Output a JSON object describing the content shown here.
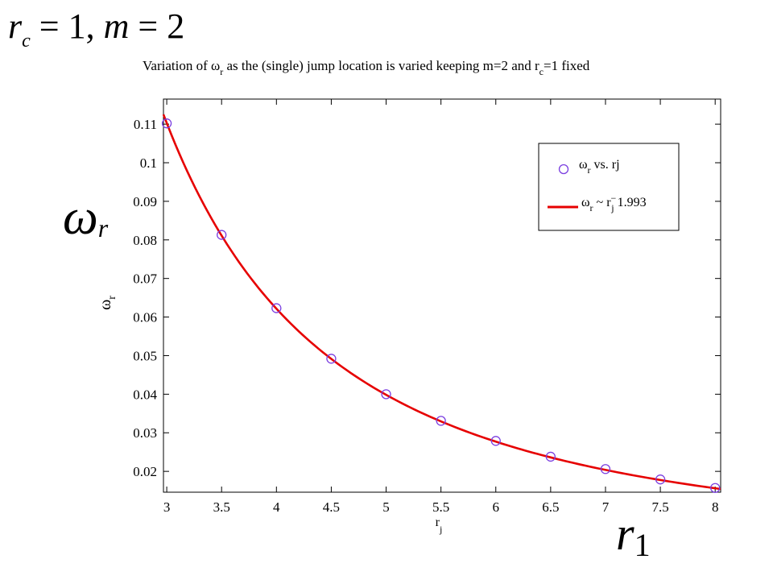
{
  "slide": {
    "heading": {
      "r": "r",
      "c": "c",
      "eq1": " = 1, ",
      "m": "m",
      "eq2": " = 2"
    },
    "big_y_symbol": {
      "omega": "ω",
      "sub": "r"
    },
    "big_x_symbol": {
      "r": "r",
      "sub": "1"
    }
  },
  "chart_data": {
    "type": "scatter",
    "title_parts": {
      "pre": "Variation of ",
      "omega": "ω",
      "omega_sub": "r",
      "mid": " as the (single) jump location is varied keeping m=2 and r",
      "r_sub": "c",
      "post": "=1 fixed"
    },
    "xlabel": {
      "main": "r",
      "sub": "j"
    },
    "ylabel": {
      "main": "ω",
      "sub": "r"
    },
    "xlim": [
      2.97,
      8.05
    ],
    "ylim": [
      0.0146,
      0.1165
    ],
    "x_ticks": [
      3,
      3.5,
      4,
      4.5,
      5,
      5.5,
      6,
      6.5,
      7,
      7.5,
      8
    ],
    "x_tick_labels": [
      "3",
      "3.5",
      "4",
      "4.5",
      "5",
      "5.5",
      "6",
      "6.5",
      "7",
      "7.5",
      "8"
    ],
    "y_ticks": [
      0.02,
      0.03,
      0.04,
      0.05,
      0.06,
      0.07,
      0.08,
      0.09,
      0.1,
      0.11
    ],
    "y_tick_labels": [
      "0.02",
      "0.03",
      "0.04",
      "0.05",
      "0.06",
      "0.07",
      "0.08",
      "0.09",
      "0.1",
      "0.11"
    ],
    "grid": false,
    "legend_position": "top-right",
    "series": [
      {
        "name": "ωr vs. rj",
        "legend": {
          "omega": "ω",
          "sub": "r",
          "rest": " vs. rj"
        },
        "marker": "circle",
        "color": "#7b3fe0",
        "x": [
          3,
          3.5,
          4,
          4.5,
          5,
          5.5,
          6,
          6.5,
          7,
          7.5,
          8
        ],
        "y": [
          0.1102,
          0.0813,
          0.0623,
          0.0492,
          0.04,
          0.0331,
          0.0279,
          0.0238,
          0.0206,
          0.0179,
          0.0157
        ]
      },
      {
        "name": "ωr ~ rj^-1.993",
        "legend": {
          "omega": "ω",
          "sub": "r",
          "mid": " ~ r",
          "sup": "−",
          "r_sub": "j",
          "exp": "1.993"
        },
        "line": "solid",
        "color": "#e60000",
        "fit": {
          "coefficient": 0.985,
          "exponent": -1.993,
          "x_range": [
            2.97,
            8.05
          ]
        }
      }
    ]
  }
}
